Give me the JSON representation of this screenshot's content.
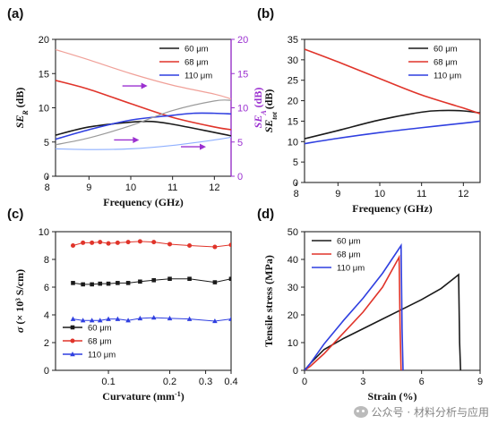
{
  "figure": {
    "watermark": "公众号 · 材料分析与应用",
    "colors": {
      "black": "#1a1a1a",
      "red": "#e0342a",
      "blue": "#2f3fe0",
      "purple": "#9b30d0",
      "light_black": "#9a9a9a",
      "light_red": "#f0a098",
      "light_blue": "#8fb0ff"
    }
  },
  "chart_data": [
    {
      "id": "a",
      "panel_label": "(a)",
      "type": "line",
      "xlabel": "Frequency (GHz)",
      "ylabel_left": "SE_R (dB)",
      "ylabel_right": "SE_A (dB)",
      "xlim": [
        8.2,
        12.4
      ],
      "ylim": [
        0,
        20
      ],
      "ylim_right": [
        0,
        20
      ],
      "xticks": [
        8,
        9,
        10,
        11,
        12
      ],
      "yticks": [
        0,
        5,
        10,
        15,
        20
      ],
      "yticks_right": [
        0,
        5,
        10,
        15,
        20
      ],
      "legend": {
        "position": "top-right",
        "entries": [
          "60 μm",
          "68 μm",
          "110 μm"
        ]
      },
      "arrows_point": "right",
      "series": [
        {
          "name": "60 μm",
          "axis": "left",
          "color": "#1a1a1a",
          "x": [
            8.2,
            9,
            10,
            10.5,
            11,
            12,
            12.4
          ],
          "y": [
            6.0,
            7.2,
            7.9,
            8.0,
            7.6,
            6.4,
            5.9
          ]
        },
        {
          "name": "68 μm",
          "axis": "left",
          "color": "#e0342a",
          "x": [
            8.2,
            9,
            10,
            11,
            12,
            12.4
          ],
          "y": [
            14.0,
            12.7,
            10.6,
            8.6,
            7.2,
            6.8
          ]
        },
        {
          "name": "110 μm",
          "axis": "left",
          "color": "#2f3fe0",
          "x": [
            8.2,
            9,
            10,
            11,
            11.5,
            12,
            12.4
          ],
          "y": [
            5.4,
            6.8,
            8.2,
            8.9,
            9.2,
            9.2,
            9.1
          ]
        },
        {
          "name": "60 μm SE_A",
          "axis": "right",
          "color": "#9a9a9a",
          "x": [
            8.2,
            9,
            10,
            11,
            12,
            12.4
          ],
          "y": [
            4.6,
            5.6,
            7.4,
            9.6,
            11.0,
            11.1
          ]
        },
        {
          "name": "68 μm SE_A",
          "axis": "right",
          "color": "#f0a098",
          "x": [
            8.2,
            9,
            10,
            11,
            12,
            12.4
          ],
          "y": [
            18.5,
            17.0,
            15.0,
            13.3,
            12.0,
            11.3
          ]
        },
        {
          "name": "110 μm SE_A",
          "axis": "right",
          "color": "#8fb0ff",
          "x": [
            8.2,
            9,
            10,
            11,
            12,
            12.4
          ],
          "y": [
            4.0,
            3.9,
            4.0,
            4.5,
            5.3,
            5.7
          ]
        }
      ]
    },
    {
      "id": "b",
      "panel_label": "(b)",
      "type": "line",
      "xlabel": "Frequency (GHz)",
      "ylabel": "SE_tot (dB)",
      "xlim": [
        8.2,
        12.4
      ],
      "ylim": [
        0,
        35
      ],
      "xticks": [
        8,
        9,
        10,
        11,
        12
      ],
      "yticks": [
        0,
        5,
        10,
        15,
        20,
        25,
        30,
        35
      ],
      "legend": {
        "position": "top-right",
        "entries": [
          "60 μm",
          "68 μm",
          "110 μm"
        ]
      },
      "series": [
        {
          "name": "60 μm",
          "color": "#1a1a1a",
          "x": [
            8.2,
            9,
            10,
            11,
            11.5,
            12,
            12.4
          ],
          "y": [
            10.7,
            12.7,
            15.3,
            17.2,
            17.6,
            17.5,
            17.0
          ]
        },
        {
          "name": "68 μm",
          "color": "#e0342a",
          "x": [
            8.2,
            9,
            10,
            11,
            12,
            12.4
          ],
          "y": [
            32.6,
            29.5,
            25.4,
            21.4,
            18.2,
            16.8
          ]
        },
        {
          "name": "110 μm",
          "color": "#2f3fe0",
          "x": [
            8.2,
            9,
            10,
            11,
            12,
            12.4
          ],
          "y": [
            9.5,
            10.8,
            12.2,
            13.4,
            14.5,
            15.0
          ]
        }
      ]
    },
    {
      "id": "c",
      "panel_label": "(c)",
      "type": "scatter",
      "xlabel": "Curvature (mm⁻¹)",
      "ylabel": "σ (× 10³ S/cm)",
      "xlim": [
        0.055,
        0.4
      ],
      "ylim": [
        0,
        10
      ],
      "xscale": "log",
      "xticks": [
        0.1,
        0.2,
        0.3,
        0.4
      ],
      "xtick_labels": [
        "0.1",
        "0.2",
        "0.3",
        "0.4"
      ],
      "yticks": [
        0,
        2,
        4,
        6,
        8,
        10
      ],
      "legend": {
        "position": "bottom-left",
        "entries": [
          "60 μm",
          "68 μm",
          "110 μm"
        ]
      },
      "series": [
        {
          "name": "60 μm",
          "color": "#1a1a1a",
          "marker": "square",
          "x": [
            0.067,
            0.075,
            0.083,
            0.091,
            0.1,
            0.111,
            0.125,
            0.143,
            0.167,
            0.2,
            0.25,
            0.333,
            0.4
          ],
          "y": [
            6.3,
            6.2,
            6.2,
            6.25,
            6.25,
            6.3,
            6.3,
            6.4,
            6.5,
            6.6,
            6.6,
            6.35,
            6.6
          ]
        },
        {
          "name": "68 μm",
          "color": "#e0342a",
          "marker": "circle",
          "x": [
            0.067,
            0.075,
            0.083,
            0.091,
            0.1,
            0.111,
            0.125,
            0.143,
            0.167,
            0.2,
            0.25,
            0.333,
            0.4
          ],
          "y": [
            9.0,
            9.2,
            9.2,
            9.25,
            9.15,
            9.2,
            9.25,
            9.3,
            9.25,
            9.1,
            9.0,
            8.9,
            9.05
          ]
        },
        {
          "name": "110 μm",
          "color": "#2f3fe0",
          "marker": "triangle",
          "x": [
            0.067,
            0.075,
            0.083,
            0.091,
            0.1,
            0.111,
            0.125,
            0.143,
            0.167,
            0.2,
            0.25,
            0.333,
            0.4
          ],
          "y": [
            3.7,
            3.6,
            3.6,
            3.6,
            3.7,
            3.7,
            3.6,
            3.75,
            3.8,
            3.75,
            3.7,
            3.55,
            3.7
          ]
        }
      ]
    },
    {
      "id": "d",
      "panel_label": "(d)",
      "type": "line",
      "xlabel": "Strain (%)",
      "ylabel": "Tensile stress (MPa)",
      "xlim": [
        0,
        9
      ],
      "ylim": [
        0,
        50
      ],
      "xticks": [
        0,
        3,
        6,
        9
      ],
      "yticks": [
        0,
        10,
        20,
        30,
        40,
        50
      ],
      "legend": {
        "position": "top-left",
        "entries": [
          "60 μm",
          "68 μm",
          "110 μm"
        ]
      },
      "series": [
        {
          "name": "60 μm",
          "color": "#1a1a1a",
          "x": [
            0,
            0.3,
            1.0,
            2.0,
            3.0,
            4.0,
            5.0,
            6.0,
            7.0,
            7.9,
            7.95,
            8.0
          ],
          "y": [
            0,
            2.5,
            7.5,
            11.5,
            15.0,
            18.5,
            22.0,
            25.5,
            29.5,
            34.5,
            10.0,
            0
          ]
        },
        {
          "name": "68 μm",
          "color": "#e0342a",
          "x": [
            0,
            0.3,
            1.0,
            2.0,
            3.0,
            4.0,
            4.85,
            4.9,
            4.95
          ],
          "y": [
            0,
            1.5,
            6.0,
            13.5,
            21.0,
            30.0,
            40.8,
            15.0,
            0
          ]
        },
        {
          "name": "110 μm",
          "color": "#2f3fe0",
          "x": [
            0,
            0.3,
            1.0,
            2.0,
            3.0,
            4.0,
            4.95,
            5.0,
            5.05
          ],
          "y": [
            0,
            2.5,
            9.5,
            18.0,
            26.0,
            35.0,
            45.0,
            15.0,
            0
          ]
        }
      ]
    }
  ]
}
